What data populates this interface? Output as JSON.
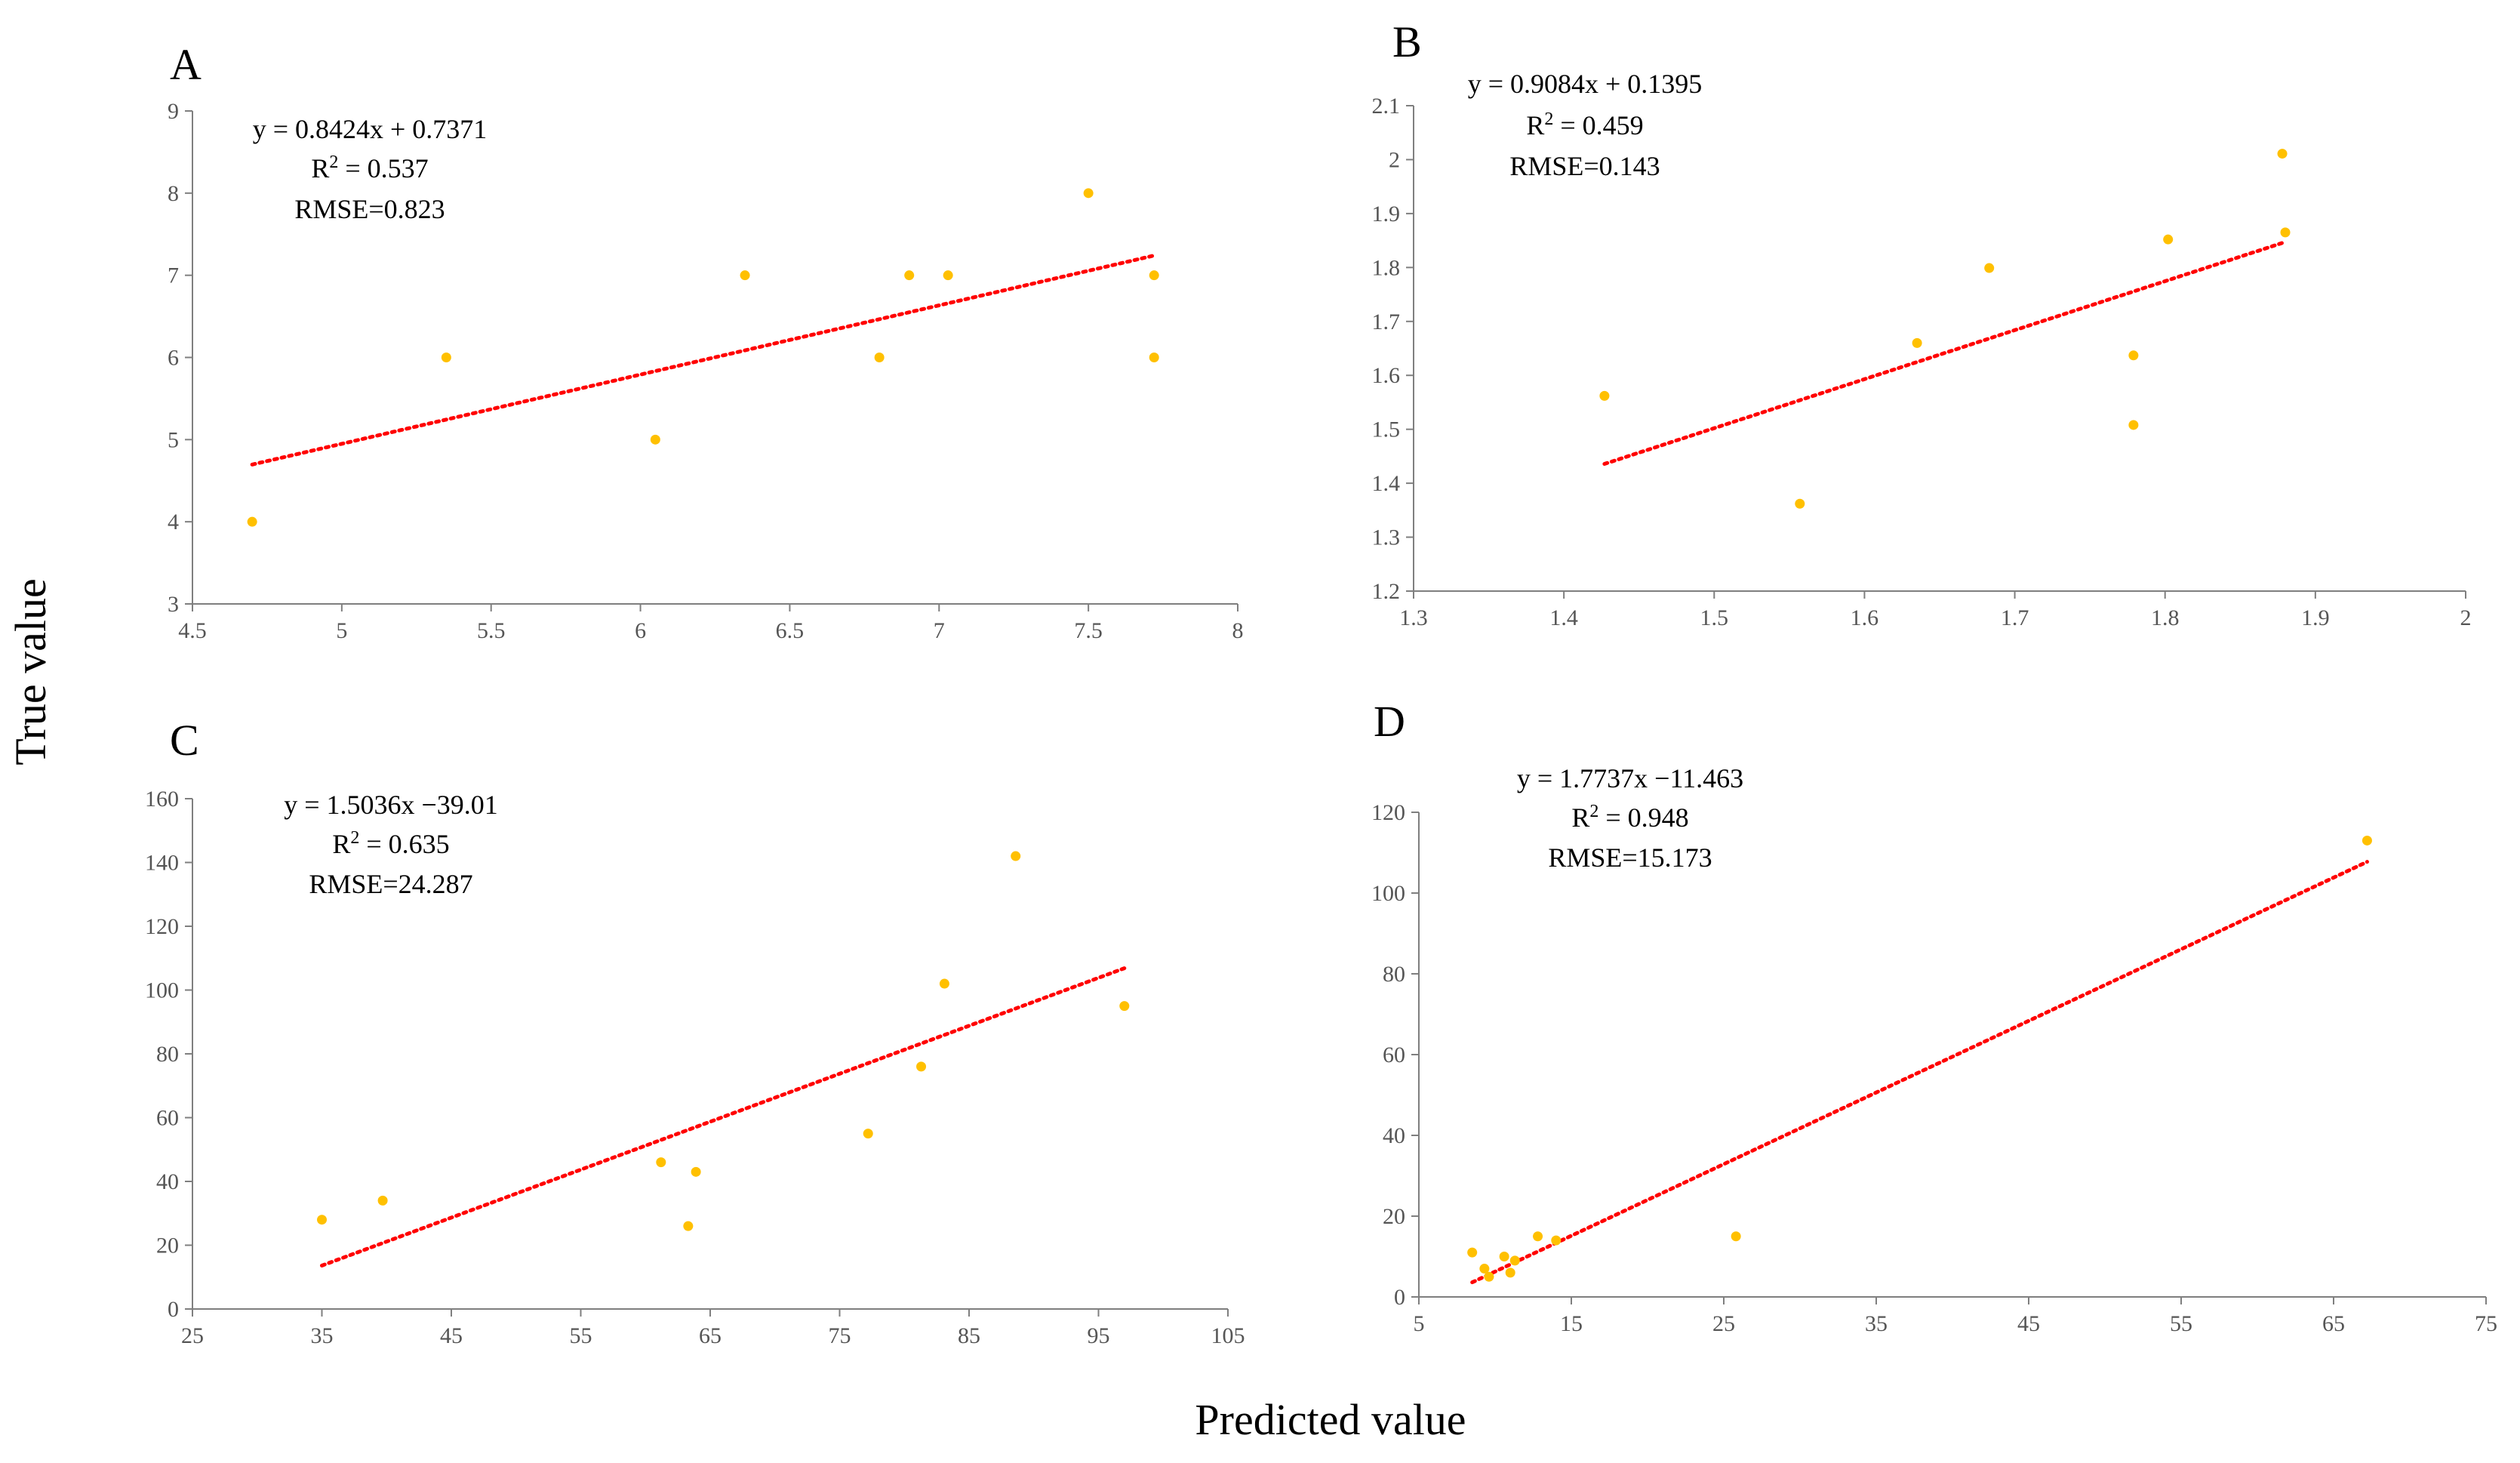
{
  "figure": {
    "xlabel": "Predicted value",
    "ylabel": "True value",
    "colors": {
      "point": "#FFC000",
      "trendline": "#FF0000",
      "axis": "#7F7F7F",
      "text": "#000000"
    }
  },
  "chart_data": [
    {
      "type": "scatter",
      "panel": "A",
      "equation": "y = 0.8424x + 0.7371",
      "r2_prefix": "R",
      "r2_sup": "2",
      "r2_value": " = 0.537",
      "rmse": "RMSE=0.823",
      "xlim": [
        4.5,
        8
      ],
      "ylim": [
        3,
        9
      ],
      "xticks": [
        4.5,
        5,
        5.5,
        6,
        6.5,
        7,
        7.5,
        8
      ],
      "yticks": [
        3,
        4,
        5,
        6,
        7,
        8,
        9
      ],
      "xtick_labels": [
        "4.5",
        "5",
        "5.5",
        "6",
        "6.5",
        "7",
        "7.5",
        "8"
      ],
      "ytick_labels": [
        "3",
        "4",
        "5",
        "6",
        "7",
        "8",
        "9"
      ],
      "points": [
        [
          4.7,
          4
        ],
        [
          5.35,
          6
        ],
        [
          6.05,
          5
        ],
        [
          6.35,
          7
        ],
        [
          6.8,
          6
        ],
        [
          6.9,
          7
        ],
        [
          7.03,
          7
        ],
        [
          7.5,
          8
        ],
        [
          7.72,
          7
        ],
        [
          7.72,
          6
        ]
      ],
      "trendline": {
        "slope": 0.8424,
        "intercept": 0.7371,
        "x_range": [
          4.7,
          7.72
        ]
      }
    },
    {
      "type": "scatter",
      "panel": "B",
      "equation": "y = 0.9084x + 0.1395",
      "r2_prefix": "R",
      "r2_sup": "2",
      "r2_value": " = 0.459",
      "rmse": "RMSE=0.143",
      "xlim": [
        1.3,
        2
      ],
      "ylim": [
        1.2,
        2.1
      ],
      "xticks": [
        1.3,
        1.4,
        1.5,
        1.6,
        1.7,
        1.8,
        1.9,
        2
      ],
      "yticks": [
        1.2,
        1.3,
        1.4,
        1.5,
        1.6,
        1.7,
        1.8,
        1.9,
        2,
        2.1
      ],
      "xtick_labels": [
        "1.3",
        "1.4",
        "1.5",
        "1.6",
        "1.7",
        "1.8",
        "1.9",
        "2"
      ],
      "ytick_labels": [
        "1.2",
        "1.3",
        "1.4",
        "1.5",
        "1.6",
        "1.7",
        "1.8",
        "1.9",
        "2",
        "2.1"
      ],
      "points": [
        [
          1.427,
          1.562
        ],
        [
          1.557,
          1.362
        ],
        [
          1.635,
          1.66
        ],
        [
          1.683,
          1.799
        ],
        [
          1.779,
          1.637
        ],
        [
          1.779,
          1.508
        ],
        [
          1.802,
          1.852
        ],
        [
          1.878,
          2.011
        ],
        [
          1.88,
          1.865
        ]
      ],
      "trendline": {
        "slope": 0.9084,
        "intercept": 0.1395,
        "x_range": [
          1.427,
          1.878
        ]
      }
    },
    {
      "type": "scatter",
      "panel": "C",
      "equation": "y = 1.5036x −39.01",
      "r2_prefix": "R",
      "r2_sup": "2",
      "r2_value": " = 0.635",
      "rmse": "RMSE=24.287",
      "xlim": [
        25,
        105
      ],
      "ylim": [
        0,
        160
      ],
      "xticks": [
        25,
        35,
        45,
        55,
        65,
        75,
        85,
        95,
        105
      ],
      "yticks": [
        0,
        20,
        40,
        60,
        80,
        100,
        120,
        140,
        160
      ],
      "xtick_labels": [
        "25",
        "35",
        "45",
        "55",
        "65",
        "75",
        "85",
        "95",
        "105"
      ],
      "ytick_labels": [
        "0",
        "20",
        "40",
        "60",
        "80",
        "100",
        "120",
        "140",
        "160"
      ],
      "points": [
        [
          35,
          28
        ],
        [
          39.7,
          34
        ],
        [
          61.2,
          46
        ],
        [
          63.3,
          26
        ],
        [
          63.9,
          43
        ],
        [
          77.2,
          55
        ],
        [
          81.3,
          76
        ],
        [
          83.1,
          102
        ],
        [
          88.6,
          142
        ],
        [
          97,
          95
        ]
      ],
      "trendline": {
        "slope": 1.5036,
        "intercept": -39.01,
        "x_range": [
          35,
          97
        ]
      }
    },
    {
      "type": "scatter",
      "panel": "D",
      "equation": "y = 1.7737x −11.463",
      "r2_prefix": "R",
      "r2_sup": "2",
      "r2_value": " = 0.948",
      "rmse": "RMSE=15.173",
      "xlim": [
        5,
        75
      ],
      "ylim": [
        0,
        120
      ],
      "xticks": [
        5,
        15,
        25,
        35,
        45,
        55,
        65,
        75
      ],
      "yticks": [
        0,
        20,
        40,
        60,
        80,
        100,
        120
      ],
      "xtick_labels": [
        "5",
        "15",
        "25",
        "35",
        "45",
        "55",
        "65",
        "75"
      ],
      "ytick_labels": [
        "0",
        "20",
        "40",
        "60",
        "80",
        "100",
        "120"
      ],
      "points": [
        [
          8.5,
          11
        ],
        [
          9.3,
          7
        ],
        [
          9.6,
          5
        ],
        [
          10.6,
          10
        ],
        [
          11,
          6
        ],
        [
          11.3,
          9
        ],
        [
          12.8,
          15
        ],
        [
          14,
          14
        ],
        [
          25.8,
          15
        ],
        [
          67.2,
          113
        ]
      ],
      "trendline": {
        "slope": 1.7737,
        "intercept": -11.463,
        "x_range": [
          8.5,
          67.2
        ]
      }
    }
  ]
}
